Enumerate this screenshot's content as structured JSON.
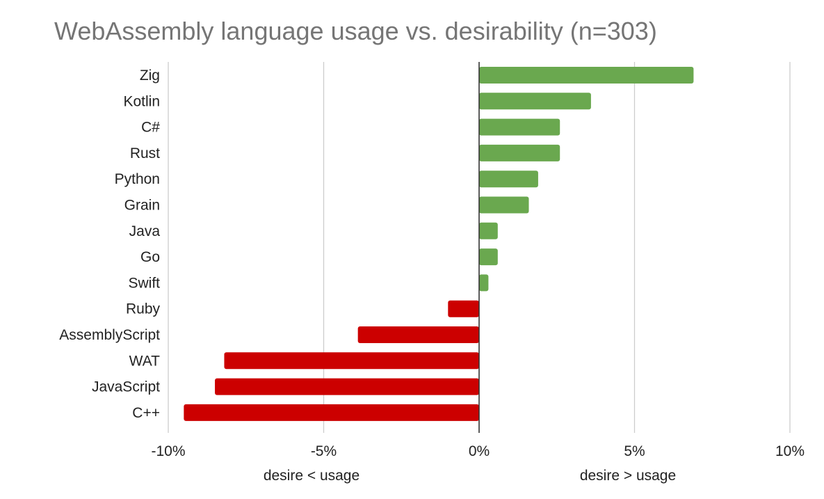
{
  "chart_data": {
    "type": "bar",
    "orientation": "horizontal",
    "title": "WebAssembly language usage vs. desirability (n=303)",
    "categories": [
      "Zig",
      "Kotlin",
      "C#",
      "Rust",
      "Python",
      "Grain",
      "Java",
      "Go",
      "Swift",
      "Ruby",
      "AssemblyScript",
      "WAT",
      "JavaScript",
      "C++"
    ],
    "values": [
      6.9,
      3.6,
      2.6,
      2.6,
      1.9,
      1.6,
      0.6,
      0.6,
      0.3,
      -1.0,
      -3.9,
      -8.2,
      -8.5,
      -9.5
    ],
    "units": "%",
    "xlim": [
      -10,
      10
    ],
    "xticks": [
      -10,
      -5,
      0,
      5,
      10
    ],
    "xtick_labels": [
      "-10%",
      "-5%",
      "0%",
      "5%",
      "10%"
    ],
    "xlabel_negative": "desire < usage",
    "xlabel_positive": "desire > usage",
    "grid": true,
    "colors": {
      "positive": "#6aa84f",
      "negative": "#cc0000",
      "grid": "#cccccc",
      "axis": "#333333"
    }
  }
}
